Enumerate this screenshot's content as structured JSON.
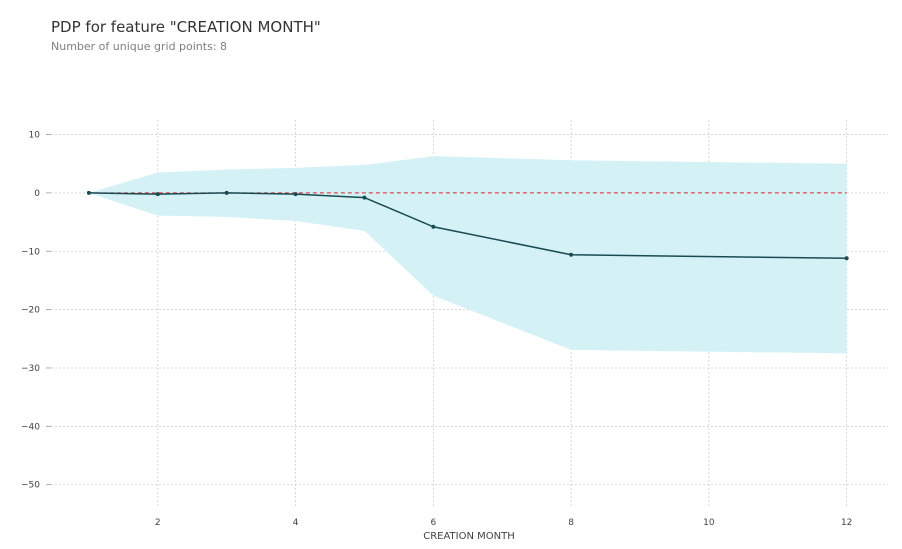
{
  "chart_data": {
    "type": "line",
    "title": "PDP for feature \"CREATION MONTH\"",
    "subtitle": "Number of unique grid points: 8",
    "xlabel": "CREATION MONTH",
    "ylabel": "",
    "x": [
      1,
      2,
      3,
      4,
      5,
      6,
      8,
      12
    ],
    "series": [
      {
        "values": [
          0,
          -0.2,
          0.0,
          -0.2,
          -0.8,
          -5.8,
          -10.6,
          -11.2
        ]
      }
    ],
    "band_upper": [
      0,
      3.5,
      4.0,
      4.3,
      4.8,
      6.3,
      5.6,
      5.0
    ],
    "band_lower": [
      0,
      -3.9,
      -4.1,
      -4.8,
      -6.5,
      -17.6,
      -26.9,
      -27.5
    ],
    "reference_line": 0,
    "xticks": [
      2,
      4,
      6,
      8,
      10,
      12
    ],
    "yticks": [
      10,
      0,
      -10,
      -20,
      -30,
      -40,
      -50
    ],
    "ytick_labels": [
      "10",
      "0",
      "−10",
      "−20",
      "−30",
      "−40",
      "−50"
    ],
    "xlim": [
      0.45,
      12.6
    ],
    "ylim": [
      -54,
      12.5
    ],
    "grid": true,
    "colors": {
      "line": "#1a4a52",
      "band": "#d4f2f6",
      "reference": "#d62728",
      "grid": "#cfcfcf"
    }
  }
}
